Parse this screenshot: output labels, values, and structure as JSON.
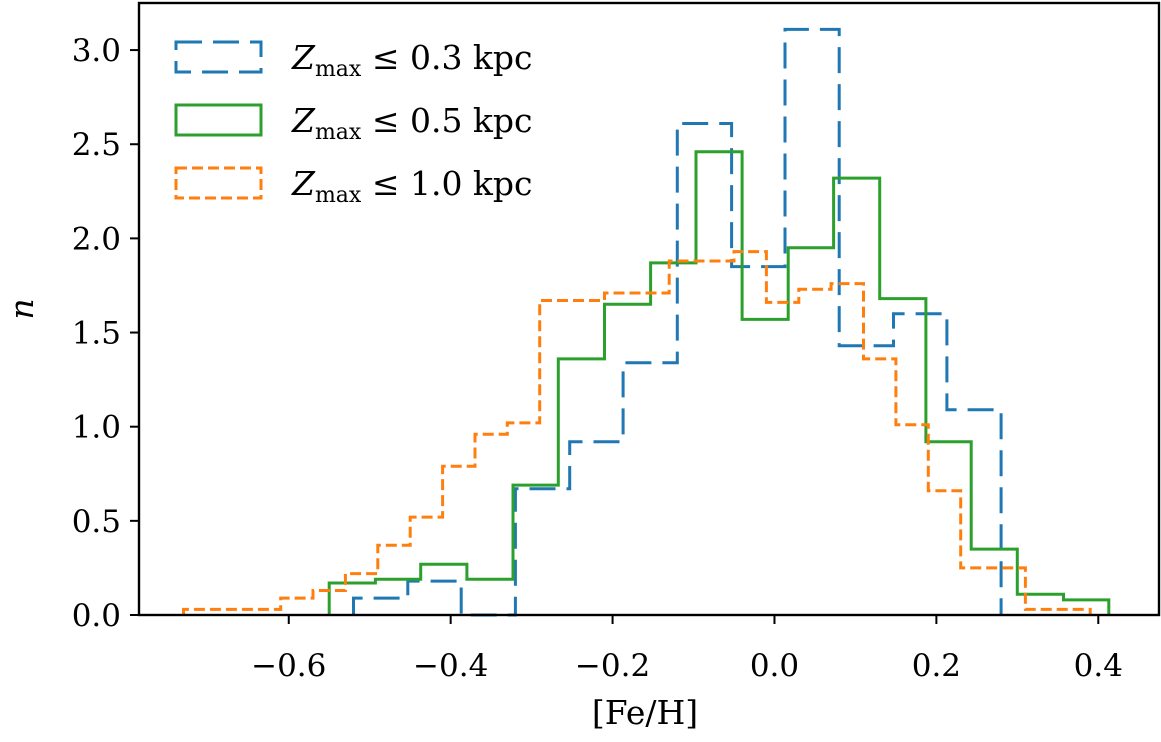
{
  "chart_data": {
    "type": "histogram-step",
    "xlabel": "[Fe/H]",
    "ylabel": "n",
    "xlim": [
      -0.785,
      0.475
    ],
    "ylim": [
      0.0,
      3.25
    ],
    "xticks": [
      -0.6,
      -0.4,
      -0.2,
      0.0,
      0.2,
      0.4
    ],
    "xtick_labels": [
      "−0.6",
      "−0.4",
      "−0.2",
      "0.0",
      "0.2",
      "0.4"
    ],
    "yticks": [
      0.0,
      0.5,
      1.0,
      1.5,
      2.0,
      2.5,
      3.0
    ],
    "ytick_labels": [
      "0.0",
      "0.5",
      "1.0",
      "1.5",
      "2.0",
      "2.5",
      "3.0"
    ],
    "legend_position": "top-left",
    "grid": false,
    "series": [
      {
        "name": "Zmax ≤ 0.3 kpc",
        "label_main": "Z",
        "label_sub": "max",
        "label_rest": "≤ 0.3 kpc",
        "color": "#1f77b4",
        "linestyle": "long-dash",
        "edges": [
          -0.52,
          -0.453,
          -0.387,
          -0.32,
          -0.253,
          -0.187,
          -0.12,
          -0.053,
          0.013,
          0.08,
          0.147,
          0.213,
          0.28
        ],
        "values": [
          0.09,
          0.18,
          0.0,
          0.67,
          0.92,
          1.34,
          2.61,
          1.85,
          3.11,
          1.43,
          1.6,
          1.09
        ]
      },
      {
        "name": "Zmax ≤ 0.5 kpc",
        "label_main": "Z",
        "label_sub": "max",
        "label_rest": "≤ 0.5 kpc",
        "color": "#2ca02c",
        "linestyle": "solid",
        "edges": [
          -0.55,
          -0.493,
          -0.437,
          -0.38,
          -0.323,
          -0.267,
          -0.21,
          -0.153,
          -0.097,
          -0.04,
          0.017,
          0.073,
          0.13,
          0.187,
          0.243,
          0.3,
          0.357,
          0.413
        ],
        "values": [
          0.17,
          0.19,
          0.27,
          0.19,
          0.69,
          1.36,
          1.65,
          1.87,
          2.46,
          1.57,
          1.95,
          2.32,
          1.68,
          0.92,
          0.35,
          0.11,
          0.08
        ]
      },
      {
        "name": "Zmax ≤ 1.0 kpc",
        "label_main": "Z",
        "label_sub": "max",
        "label_rest": "≤ 1.0 kpc",
        "color": "#ff7f0e",
        "linestyle": "short-dash",
        "edges": [
          -0.73,
          -0.69,
          -0.65,
          -0.61,
          -0.57,
          -0.53,
          -0.49,
          -0.45,
          -0.41,
          -0.37,
          -0.33,
          -0.29,
          -0.25,
          -0.21,
          -0.17,
          -0.13,
          -0.09,
          -0.05,
          -0.01,
          0.03,
          0.07,
          0.11,
          0.15,
          0.19,
          0.23,
          0.27,
          0.31,
          0.35,
          0.39
        ],
        "values": [
          0.03,
          0.03,
          0.03,
          0.09,
          0.13,
          0.22,
          0.37,
          0.52,
          0.79,
          0.96,
          1.02,
          1.67,
          1.67,
          1.71,
          1.71,
          1.88,
          1.88,
          1.93,
          1.66,
          1.73,
          1.76,
          1.36,
          1.01,
          0.66,
          0.25,
          0.25,
          0.03,
          0.03
        ]
      }
    ]
  }
}
